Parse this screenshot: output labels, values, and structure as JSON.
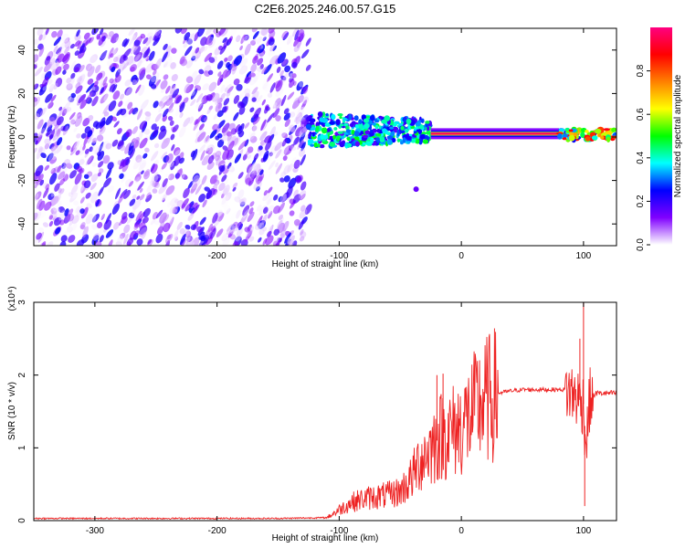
{
  "title": "C2E6.2025.246.00.57.G15",
  "chart_data": [
    {
      "type": "heatmap",
      "name": "spectrogram",
      "xlabel": "Height of straight line (km)",
      "ylabel": "Frequency (Hz)",
      "xlim": [
        -350,
        127
      ],
      "ylim": [
        -50,
        50
      ],
      "xticks": [
        -300,
        -200,
        -100,
        0,
        100
      ],
      "yticks": [
        -40,
        -20,
        0,
        20,
        40
      ],
      "grid": false,
      "regions": [
        {
          "description": "broadband noise",
          "x": [
            -350,
            -125
          ],
          "y": [
            -50,
            50
          ],
          "amplitude_range": [
            0.0,
            0.25
          ]
        },
        {
          "description": "scattered signal",
          "x": [
            -125,
            -25
          ],
          "center_freq": 3,
          "amplitude_range": [
            0.15,
            0.5
          ]
        },
        {
          "description": "stable carrier",
          "x": [
            -25,
            80
          ],
          "center_freq": 1.5,
          "amplitude": 0.97
        },
        {
          "description": "disturbed carrier",
          "x": [
            80,
            127
          ],
          "center_freq": 1,
          "amplitude_range": [
            0.2,
            0.9
          ]
        }
      ],
      "colorbar": {
        "label": "Normalized spectral amplitude",
        "range": [
          0,
          1
        ],
        "ticks": [
          "0.0",
          "0.2",
          "0.4",
          "0.6",
          "0.8"
        ],
        "colors": [
          "#ffffff",
          "#8000ff",
          "#0000ff",
          "#00ffff",
          "#00ff00",
          "#ffff00",
          "#ff8000",
          "#ff0000",
          "#ff0080"
        ]
      }
    },
    {
      "type": "line",
      "name": "snr",
      "xlabel": "Height of straight line (km)",
      "ylabel": "SNR (10 * v/v)",
      "y_multiplier": "(x10⁴)",
      "xlim": [
        -350,
        127
      ],
      "ylim": [
        0,
        3
      ],
      "xticks": [
        -300,
        -200,
        -100,
        0,
        100
      ],
      "yticks": [
        0,
        1,
        2,
        3
      ],
      "series": [
        {
          "name": "SNR",
          "color": "#ee2222",
          "x": [
            -350,
            -300,
            -250,
            -200,
            -150,
            -110,
            -100,
            -90,
            -80,
            -70,
            -60,
            -50,
            -45,
            -40,
            -35,
            -30,
            -25,
            -20,
            -15,
            -10,
            -5,
            0,
            5,
            10,
            15,
            20,
            25,
            30,
            40,
            50,
            60,
            70,
            80,
            85,
            90,
            95,
            100,
            102,
            105,
            110,
            115,
            120,
            127
          ],
          "y": [
            0.03,
            0.03,
            0.03,
            0.03,
            0.03,
            0.04,
            0.15,
            0.25,
            0.3,
            0.33,
            0.35,
            0.4,
            0.5,
            0.6,
            0.8,
            0.9,
            1.0,
            1.1,
            1.2,
            1.2,
            1.25,
            1.3,
            1.4,
            1.5,
            1.6,
            1.65,
            1.7,
            1.75,
            1.78,
            1.8,
            1.8,
            1.8,
            1.8,
            1.8,
            1.75,
            1.7,
            1.6,
            1.0,
            1.65,
            1.75,
            1.75,
            1.75,
            1.75
          ]
        }
      ],
      "spikes": [
        {
          "x": -20,
          "y": 2.0
        },
        {
          "x": -15,
          "y": 2.02
        },
        {
          "x": 97,
          "y": 2.5
        },
        {
          "x": 100,
          "y": 3.0
        },
        {
          "x": 101,
          "y": 0.2
        }
      ]
    }
  ]
}
